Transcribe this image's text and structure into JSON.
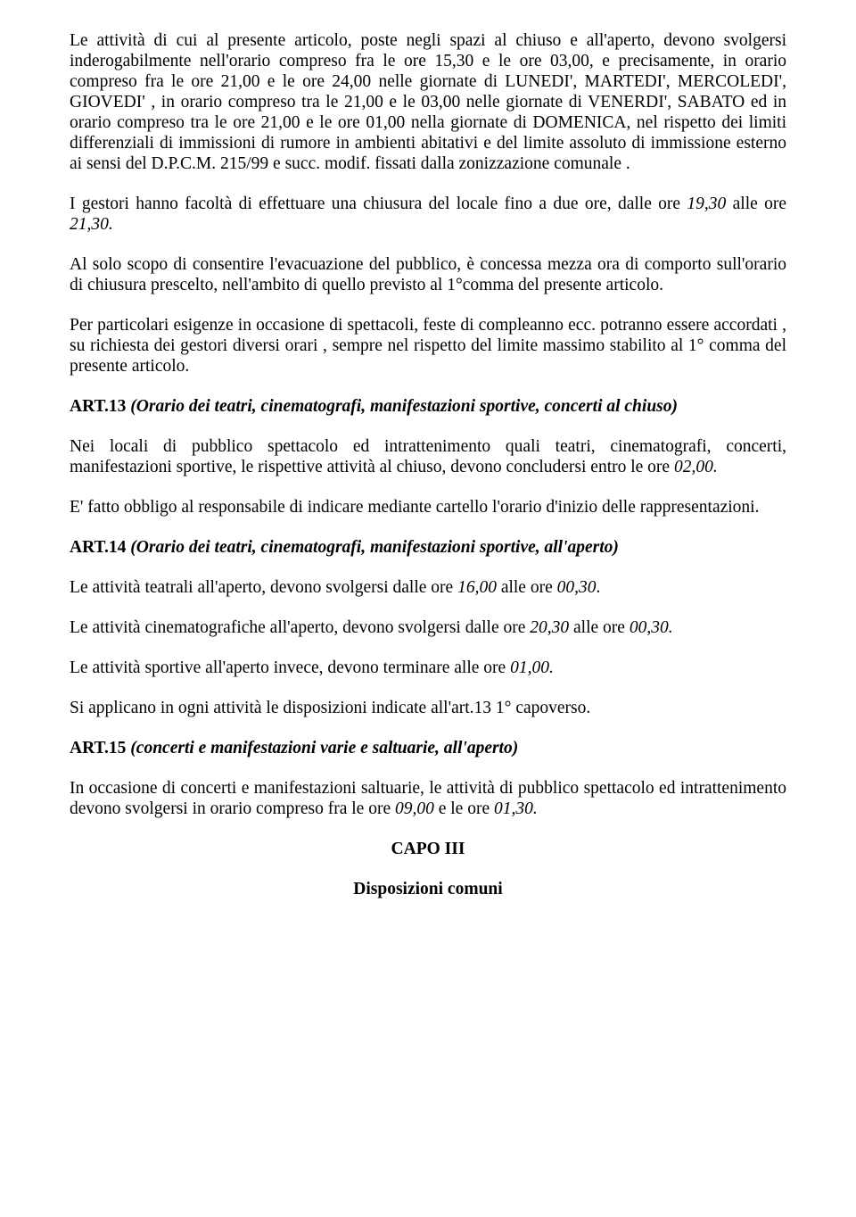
{
  "para1": "Le attività di cui al presente articolo, poste negli spazi al chiuso e all'aperto, devono svolgersi inderogabilmente nell'orario compreso fra le ore 15,30 e le ore 03,00, e precisamente, in orario compreso fra le ore 21,00 e le ore 24,00 nelle giornate di LUNEDI', MARTEDI', MERCOLEDI', GIOVEDI' , in orario compreso tra le 21,00 e le 03,00 nelle giornate di VENERDI', SABATO ed in orario compreso tra le ore 21,00 e le ore 01,00 nella giornate di DOMENICA, nel rispetto dei limiti differenziali di immissioni di rumore in ambienti abitativi e del limite assoluto di immissione esterno ai sensi del D.P.C.M. 215/99 e succ. modif.  fissati dalla zonizzazione comunale .",
  "para2_a": "I gestori hanno facoltà di effettuare una chiusura del locale fino a due ore, dalle ore ",
  "para2_b": "19,30",
  "para2_c": " alle ore ",
  "para2_d": "21,30.",
  "para3": "Al solo scopo di consentire l'evacuazione del pubblico, è concessa mezza ora di comporto sull'orario di chiusura prescelto, nell'ambito di quello previsto al 1°comma del presente articolo.",
  "para4": "Per particolari esigenze in occasione di spettacoli, feste di compleanno ecc. potranno essere accordati , su richiesta dei gestori diversi orari , sempre nel rispetto del limite massimo stabilito al 1° comma del presente articolo.",
  "h13_a": "ART.13  ",
  "h13_b": "(Orario dei teatri, cinematografi, manifestazioni sportive, concerti al chiuso)",
  "para5_a": "Nei locali di pubblico spettacolo ed intrattenimento quali teatri, cinematografi, concerti, manifestazioni sportive, le rispettive attività al chiuso, devono concludersi entro le ore ",
  "para5_b": "02,00.",
  "para6": "E' fatto obbligo al responsabile di indicare mediante cartello l'orario d'inizio delle rappresentazioni.",
  "h14_a": "ART.14  ",
  "h14_b": "(Orario dei teatri, cinematografi, manifestazioni sportive, all'aperto)",
  "para7_a": "Le attività teatrali all'aperto, devono svolgersi dalle ore ",
  "para7_b": "16,00",
  "para7_c": " alle ore ",
  "para7_d": "00,30",
  "para7_e": ".",
  "para8_a": "Le attività cinematografiche all'aperto, devono svolgersi dalle ore ",
  "para8_b": "20,30",
  "para8_c": " alle ore ",
  "para8_d": "00,30.",
  "para9_a": "Le attività sportive all'aperto invece, devono terminare alle ore ",
  "para9_b": "01,00.",
  "para10": "Si applicano in ogni attività le disposizioni indicate all'art.13 1° capoverso.",
  "h15_a": "ART.15  ",
  "h15_b": "(concerti e manifestazioni varie e saltuarie, all'aperto)",
  "para11_a": "In occasione di concerti e manifestazioni saltuarie, le attività di pubblico spettacolo ed intrattenimento devono svolgersi in orario compreso fra le ore ",
  "para11_b": "09,00",
  "para11_c": " e le ore ",
  "para11_d": "01,30.",
  "capo": "CAPO III",
  "disp": "Disposizioni comuni"
}
